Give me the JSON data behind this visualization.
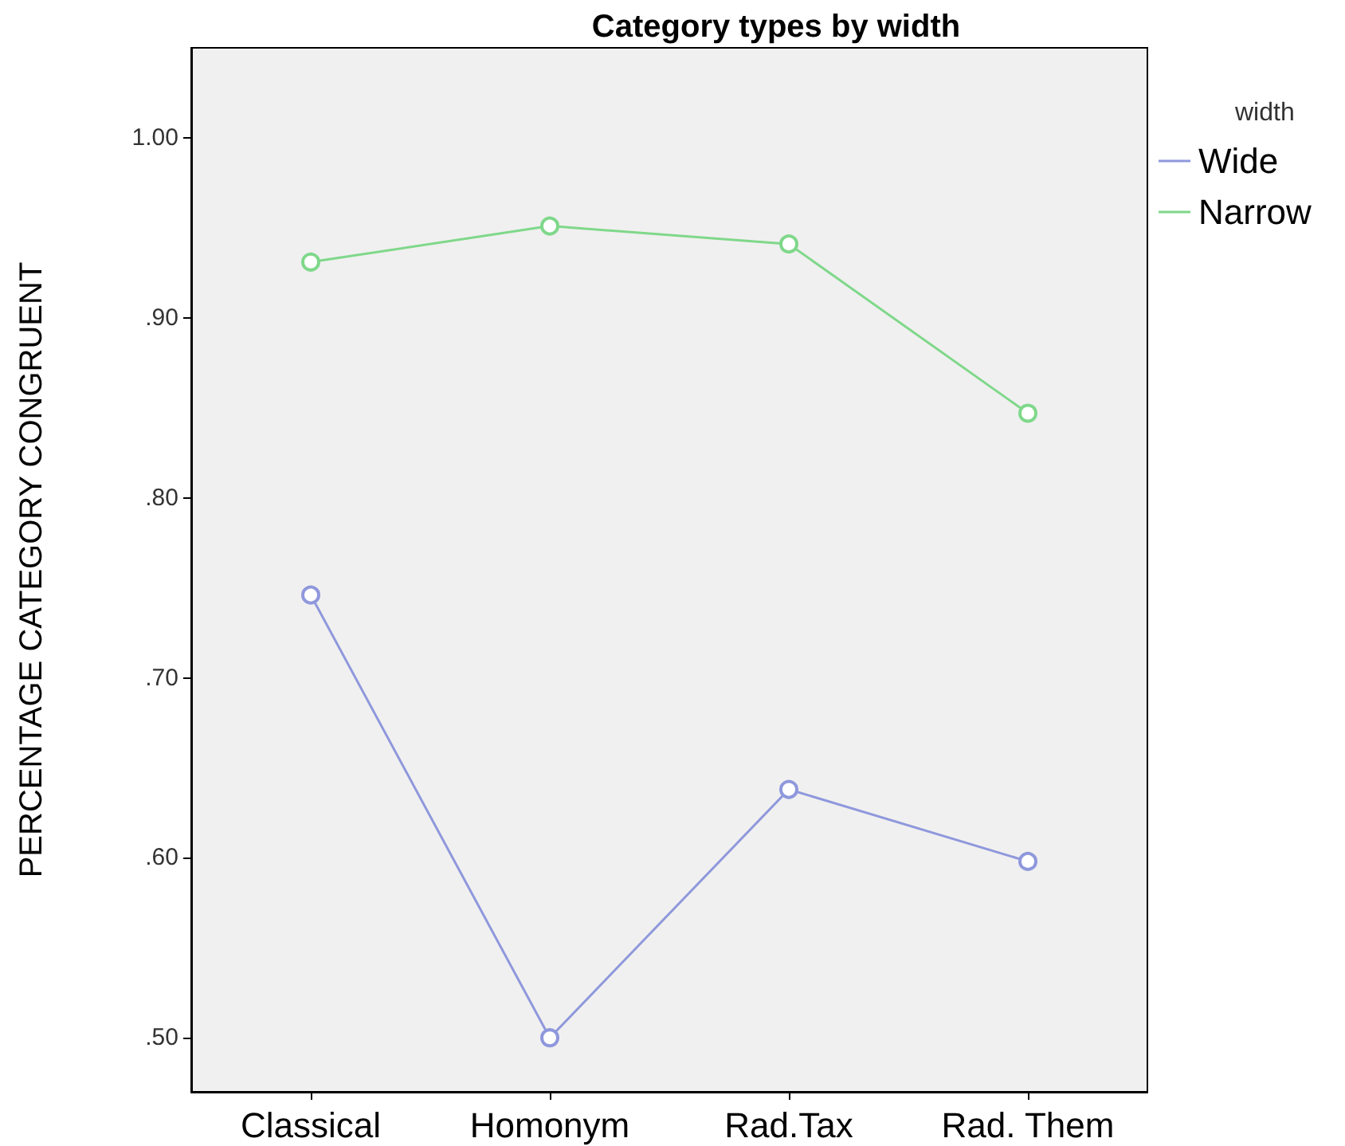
{
  "chart_data": {
    "type": "line",
    "title": "Category types by width",
    "ylabel": "PERCENTAGE CATEGORY CONGRUENT",
    "legend_title": "width",
    "categories": [
      "Classical",
      "Homonym",
      "Rad.Tax",
      "Rad. Them"
    ],
    "series": [
      {
        "name": "Wide",
        "color": "#8f98dc",
        "values": [
          0.746,
          0.5,
          0.638,
          0.598
        ]
      },
      {
        "name": "Narrow",
        "color": "#7fd88a",
        "values": [
          0.931,
          0.951,
          0.941,
          0.847
        ]
      }
    ],
    "ylim": [
      0.47,
      1.05
    ],
    "yticks": [
      {
        "value": 0.5,
        "label": ".50"
      },
      {
        "value": 0.6,
        "label": ".60"
      },
      {
        "value": 0.7,
        "label": ".70"
      },
      {
        "value": 0.8,
        "label": ".80"
      },
      {
        "value": 0.9,
        "label": ".90"
      },
      {
        "value": 1.0,
        "label": "1.00"
      }
    ],
    "grid": false,
    "legend": "top right",
    "marker": "circle",
    "line_style": "solid"
  }
}
